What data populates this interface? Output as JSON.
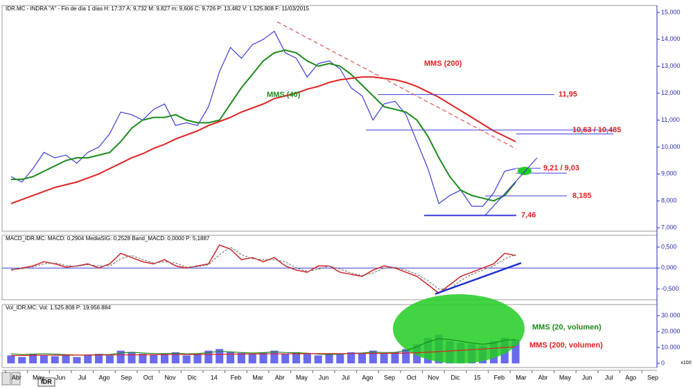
{
  "chart_data": [
    {
      "type": "line",
      "header": "IDR.MC - INDRA \"A\" - Fin de día 1 días  H: 17:37  A: 9,732  M: 9,827  m: 9,606  C: 9,726  P: 13,482  V: 1.525.808  F: 11/03/2015",
      "ylim": [
        6.9,
        15.23
      ],
      "yticks": [
        {
          "value": 15,
          "label": "15,000"
        },
        {
          "value": 14,
          "label": "14,000"
        },
        {
          "value": 13,
          "label": "13,000"
        },
        {
          "value": 12,
          "label": "12,000"
        },
        {
          "value": 11,
          "label": "11,000"
        },
        {
          "value": 10,
          "label": "10,000"
        },
        {
          "value": 9,
          "label": "9,000"
        },
        {
          "value": 8,
          "label": "8,000"
        },
        {
          "value": 7,
          "label": "7,000"
        }
      ],
      "series": [
        {
          "color": "#3b3bd6",
          "values": [
            8.9,
            8.7,
            9.2,
            9.8,
            9.6,
            9.7,
            9.4,
            9.8,
            10.0,
            10.5,
            11.3,
            11.2,
            11.0,
            11.4,
            11.6,
            10.8,
            10.9,
            10.8,
            11.5,
            12.8,
            13.7,
            13.3,
            13.8,
            14.0,
            14.3,
            13.5,
            13.3,
            12.6,
            13.1,
            13.2,
            12.9,
            12.2,
            11.9,
            11.0,
            11.6,
            11.7,
            11.2,
            10.2,
            9.2,
            7.9,
            8.2,
            8.4,
            7.8,
            7.8,
            8.3,
            9.1,
            9.2,
            null,
            null,
            null,
            null,
            null,
            null,
            null,
            null,
            null,
            null,
            null,
            null,
            null
          ]
        },
        {
          "name": "MMS (40)",
          "color": "#1a8a1a",
          "values": [
            8.8,
            8.8,
            8.9,
            9.1,
            9.3,
            9.5,
            9.6,
            9.6,
            9.7,
            9.8,
            10.2,
            10.7,
            11.0,
            11.1,
            11.1,
            11.2,
            11.0,
            10.9,
            10.9,
            11.0,
            11.6,
            12.2,
            12.7,
            13.2,
            13.5,
            13.6,
            13.5,
            13.2,
            13.0,
            13.1,
            13.0,
            12.7,
            12.3,
            11.9,
            11.5,
            11.4,
            11.3,
            11.0,
            10.4,
            9.6,
            8.9,
            8.4,
            8.2,
            8.1,
            8.0,
            8.2,
            8.7,
            null,
            null,
            null,
            null,
            null,
            null,
            null,
            null,
            null,
            null,
            null,
            null,
            null
          ]
        },
        {
          "name": "MMS (200)",
          "color": "#e02020",
          "values": [
            7.9,
            8.05,
            8.2,
            8.35,
            8.5,
            8.6,
            8.7,
            8.85,
            9.0,
            9.2,
            9.4,
            9.6,
            9.75,
            9.95,
            10.1,
            10.3,
            10.45,
            10.6,
            10.8,
            10.95,
            11.1,
            11.3,
            11.45,
            11.6,
            11.8,
            11.9,
            12.0,
            12.15,
            12.25,
            12.4,
            12.5,
            12.55,
            12.6,
            12.6,
            12.55,
            12.5,
            12.4,
            12.25,
            12.05,
            11.85,
            11.6,
            11.35,
            11.1,
            10.85,
            10.6,
            10.4,
            10.2,
            null,
            null,
            null,
            null,
            null,
            null,
            null,
            null,
            null,
            null,
            null,
            null,
            null
          ]
        }
      ],
      "levels": [
        {
          "values": [
            11.95
          ],
          "label": "11,95"
        },
        {
          "values": [
            10.63,
            10.485
          ],
          "label": "10,63 / 10,485"
        },
        {
          "values": [
            9.21,
            9.03
          ],
          "label": "9,21 / 9,03"
        },
        {
          "values": [
            8.185
          ],
          "label": "8,185"
        },
        {
          "values": [
            7.46
          ],
          "label": "7,46"
        }
      ],
      "level_color": "#3b3bd6",
      "label_color": "#e02020",
      "trend_lines": [
        {
          "values": [
            14.65,
            9.93
          ],
          "color": "#e05050",
          "dashed": true
        },
        {
          "values": [
            7.46,
            9.6
          ],
          "color": "#3b3bd6",
          "dashed": false
        }
      ]
    },
    {
      "type": "line",
      "header": "MACD_IDR.MC: MACD: 0,2904  MediaSIG: 0,2528  Band_MACD: 0,0000  P: 5,1887",
      "ylim": [
        -0.74,
        0.78
      ],
      "yticks": [
        {
          "value": 0.5,
          "label": "0,500"
        },
        {
          "value": 0,
          "label": "0,000"
        },
        {
          "value": -0.5,
          "label": "-0,500"
        }
      ],
      "zero_line": true,
      "series": [
        {
          "color": "#d02020",
          "values": [
            -0.05,
            0,
            0.05,
            0.15,
            0.1,
            0.02,
            0.05,
            0.1,
            0,
            0.1,
            0.35,
            0.25,
            0.15,
            0.1,
            0.2,
            0.05,
            0,
            0.05,
            0.1,
            0.55,
            0.45,
            0.2,
            0.25,
            0.15,
            0.25,
            0.05,
            -0.05,
            -0.1,
            0.05,
            0.05,
            -0.1,
            -0.15,
            -0.2,
            -0.05,
            0.05,
            0,
            -0.1,
            -0.2,
            -0.4,
            -0.6,
            -0.4,
            -0.2,
            -0.1,
            0,
            0.1,
            0.35,
            0.3,
            null,
            null,
            null,
            null,
            null,
            null,
            null,
            null,
            null,
            null,
            null,
            null,
            null
          ]
        },
        {
          "color": "#777777",
          "dashed": true,
          "values": [
            -0.03,
            -0.02,
            0.03,
            0.1,
            0.12,
            0.06,
            0.04,
            0.08,
            0.05,
            0.05,
            0.22,
            0.3,
            0.2,
            0.12,
            0.15,
            0.12,
            0.02,
            0.03,
            0.08,
            0.32,
            0.5,
            0.32,
            0.22,
            0.2,
            0.2,
            0.15,
            0,
            -0.08,
            -0.03,
            0.05,
            -0.02,
            -0.12,
            -0.18,
            -0.12,
            0,
            0.02,
            -0.05,
            -0.15,
            -0.3,
            -0.5,
            -0.5,
            -0.3,
            -0.15,
            -0.05,
            0.05,
            0.22,
            0.32,
            null,
            null,
            null,
            null,
            null,
            null,
            null,
            null,
            null,
            null,
            null,
            null,
            null
          ]
        }
      ],
      "trend_lines": [
        {
          "values": [
            -0.62,
            0.12
          ],
          "color": "#2030d0",
          "dashed": false
        }
      ]
    },
    {
      "type": "bar",
      "header": "Vol_IDR.MC: Vol: 1.525.808  P: 19.956.884",
      "ylim": [
        -2200,
        37000
      ],
      "yticks": [
        {
          "value": 30000,
          "label": "30.000"
        },
        {
          "value": 20000,
          "label": "20.000"
        },
        {
          "value": 10000,
          "label": "10.000"
        },
        0
      ],
      "scale_note": "x100",
      "tab": "IDR",
      "categories": [
        "Abr",
        null,
        "May",
        null,
        "Jun",
        null,
        "Jul",
        null,
        "Ago",
        null,
        "Sep",
        null,
        "Oct",
        null,
        "Nov",
        null,
        "Dic",
        null,
        "14",
        null,
        "Feb",
        null,
        "Mar",
        null,
        "Abr",
        null,
        "May",
        null,
        "Jun",
        null,
        "Jul",
        null,
        "Ago",
        null,
        "Sep",
        null,
        "Oct",
        null,
        "Nov",
        null,
        "Dic",
        null,
        "15",
        null,
        "Feb",
        null,
        "Mar",
        null,
        "Abr",
        null,
        "May",
        null,
        "Jun",
        null,
        "Jul",
        null,
        "Ago",
        null,
        "Sep",
        null
      ],
      "series": [
        {
          "color": "#6a6af0",
          "values": [
            5000,
            4000,
            6000,
            5000,
            4500,
            5000,
            4000,
            5500,
            6000,
            5000,
            8000,
            7000,
            6000,
            5500,
            6000,
            7000,
            5000,
            6000,
            8000,
            9000,
            7000,
            6500,
            6000,
            7000,
            8000,
            6000,
            7000,
            6000,
            5000,
            5500,
            6000,
            7000,
            6500,
            8000,
            6000,
            7000,
            9000,
            12000,
            16000,
            18000,
            14000,
            13000,
            12000,
            11000,
            14000,
            16000,
            15000,
            null,
            null,
            null,
            null,
            null,
            null,
            null,
            null,
            null,
            null,
            null,
            null,
            null
          ]
        },
        {
          "name": "MMS (20, volumen)",
          "type": "line",
          "color": "#1a8a1a",
          "values": [
            6000,
            5500,
            5800,
            6000,
            5800,
            5500,
            5200,
            5300,
            5500,
            5600,
            6500,
            7000,
            6500,
            6200,
            6100,
            6400,
            6000,
            6100,
            6800,
            7500,
            7200,
            6800,
            6500,
            6700,
            7200,
            6800,
            6700,
            6400,
            5800,
            5600,
            5800,
            6300,
            6500,
            7100,
            6800,
            6900,
            8000,
            10500,
            13500,
            15500,
            15000,
            14000,
            12800,
            12000,
            12800,
            14500,
            15000,
            null,
            null,
            null,
            null,
            null,
            null,
            null,
            null,
            null,
            null,
            null,
            null,
            null
          ]
        },
        {
          "name": "MMS (200, volumen)",
          "type": "line",
          "color": "#e02020",
          "values": [
            5000,
            5000,
            5050,
            5100,
            5100,
            5150,
            5200,
            5200,
            5250,
            5300,
            5350,
            5400,
            5400,
            5450,
            5500,
            5550,
            5600,
            5600,
            5650,
            5700,
            5800,
            5850,
            5900,
            5950,
            6000,
            6000,
            6050,
            6100,
            6100,
            6100,
            6150,
            6150,
            6200,
            6250,
            6300,
            6350,
            6450,
            6700,
            7000,
            7400,
            7800,
            8200,
            8600,
            9000,
            9500,
            10000,
            10500,
            null,
            null,
            null,
            null,
            null,
            null,
            null,
            null,
            null,
            null,
            null,
            null,
            null
          ]
        }
      ]
    }
  ]
}
